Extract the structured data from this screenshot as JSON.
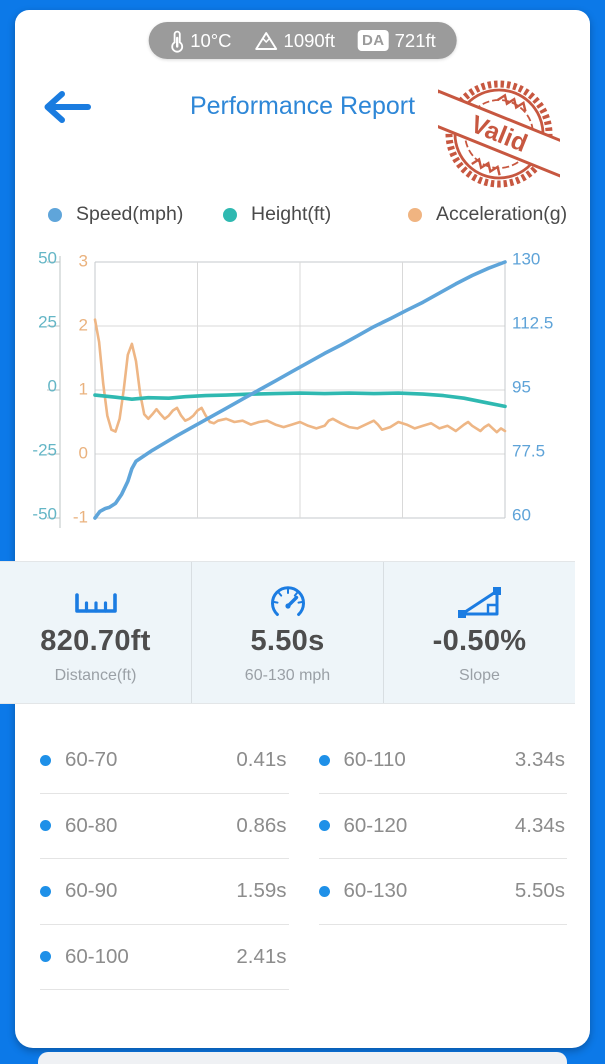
{
  "theme": {
    "frame_blue": "#0c79e8",
    "card_bg": "#ffffff",
    "accent_blue": "#1b7ce2",
    "title_blue": "#2e87d7",
    "stamp_red": "#c54f36",
    "pill_bg": "#9b9b9b",
    "stats_bg": "#eef5f9",
    "split_dot_blue": "#1e90e8",
    "value_text": "#4d4d4d",
    "muted_text": "#9aa0a6"
  },
  "env_bar": {
    "temperature": "10°C",
    "altitude": "1090ft",
    "da_label": "DA",
    "density_altitude": "721ft"
  },
  "header": {
    "title": "Performance Report",
    "stamp_text": "Valid"
  },
  "legend": [
    {
      "label": "Speed(mph)",
      "color": "#5fa5da"
    },
    {
      "label": "Height(ft)",
      "color": "#2fb9b1"
    },
    {
      "label": "Acceleration(g)",
      "color": "#f0b481"
    }
  ],
  "chart_data": {
    "type": "line",
    "x_axis": "time, normalized 0-1 over the 5.50s run (no tick labels shown)",
    "grid": {
      "rows": 4,
      "cols": 4,
      "shown": true
    },
    "legend_position": "top",
    "axes": {
      "left_outer": {
        "name": "Height(ft)",
        "color": "#64b6c6",
        "range": [
          -50,
          50
        ],
        "ticks": [
          "50",
          "25",
          "0",
          "-25",
          "-50"
        ]
      },
      "left_inner": {
        "name": "Acceleration(g)",
        "color": "#eab27e",
        "range": [
          -1,
          3
        ],
        "ticks": [
          "3",
          "2",
          "1",
          "0",
          "-1"
        ]
      },
      "right": {
        "name": "Speed(mph)",
        "color": "#5ea3d8",
        "range": [
          60,
          130
        ],
        "ticks": [
          "130",
          "112.5",
          "95",
          "77.5",
          "60"
        ]
      }
    },
    "series": [
      {
        "name": "Acceleration(g)",
        "axis": "left_inner",
        "color": "#eeb685",
        "width": 2.6,
        "points": [
          [
            0,
            2.1
          ],
          [
            0.01,
            1.75
          ],
          [
            0.02,
            1.1
          ],
          [
            0.03,
            0.6
          ],
          [
            0.04,
            0.38
          ],
          [
            0.05,
            0.35
          ],
          [
            0.06,
            0.55
          ],
          [
            0.07,
            1.0
          ],
          [
            0.08,
            1.55
          ],
          [
            0.09,
            1.72
          ],
          [
            0.1,
            1.45
          ],
          [
            0.11,
            0.95
          ],
          [
            0.12,
            0.62
          ],
          [
            0.13,
            0.55
          ],
          [
            0.14,
            0.62
          ],
          [
            0.15,
            0.7
          ],
          [
            0.16,
            0.62
          ],
          [
            0.17,
            0.55
          ],
          [
            0.18,
            0.6
          ],
          [
            0.19,
            0.68
          ],
          [
            0.2,
            0.72
          ],
          [
            0.21,
            0.6
          ],
          [
            0.22,
            0.52
          ],
          [
            0.23,
            0.55
          ],
          [
            0.24,
            0.6
          ],
          [
            0.25,
            0.68
          ],
          [
            0.26,
            0.72
          ],
          [
            0.27,
            0.6
          ],
          [
            0.28,
            0.5
          ],
          [
            0.29,
            0.48
          ],
          [
            0.3,
            0.52
          ],
          [
            0.32,
            0.55
          ],
          [
            0.34,
            0.5
          ],
          [
            0.36,
            0.52
          ],
          [
            0.38,
            0.46
          ],
          [
            0.4,
            0.5
          ],
          [
            0.42,
            0.52
          ],
          [
            0.44,
            0.46
          ],
          [
            0.46,
            0.42
          ],
          [
            0.48,
            0.46
          ],
          [
            0.5,
            0.5
          ],
          [
            0.52,
            0.44
          ],
          [
            0.54,
            0.4
          ],
          [
            0.56,
            0.44
          ],
          [
            0.57,
            0.52
          ],
          [
            0.58,
            0.55
          ],
          [
            0.6,
            0.48
          ],
          [
            0.62,
            0.42
          ],
          [
            0.64,
            0.4
          ],
          [
            0.66,
            0.46
          ],
          [
            0.68,
            0.52
          ],
          [
            0.69,
            0.46
          ],
          [
            0.7,
            0.38
          ],
          [
            0.72,
            0.42
          ],
          [
            0.74,
            0.5
          ],
          [
            0.76,
            0.46
          ],
          [
            0.78,
            0.4
          ],
          [
            0.8,
            0.44
          ],
          [
            0.82,
            0.48
          ],
          [
            0.84,
            0.4
          ],
          [
            0.86,
            0.44
          ],
          [
            0.88,
            0.36
          ],
          [
            0.9,
            0.46
          ],
          [
            0.91,
            0.5
          ],
          [
            0.92,
            0.44
          ],
          [
            0.94,
            0.36
          ],
          [
            0.95,
            0.42
          ],
          [
            0.96,
            0.46
          ],
          [
            0.97,
            0.4
          ],
          [
            0.98,
            0.34
          ],
          [
            0.99,
            0.4
          ],
          [
            1,
            0.36
          ]
        ]
      },
      {
        "name": "Height(ft)",
        "axis": "left_outer",
        "color": "#2fb9b1",
        "width": 3.6,
        "points": [
          [
            0,
            -2
          ],
          [
            0.05,
            -2.8
          ],
          [
            0.09,
            -3.6
          ],
          [
            0.13,
            -3.0
          ],
          [
            0.18,
            -3.2
          ],
          [
            0.22,
            -2.6
          ],
          [
            0.27,
            -2.2
          ],
          [
            0.32,
            -2.0
          ],
          [
            0.38,
            -1.6
          ],
          [
            0.44,
            -1.4
          ],
          [
            0.5,
            -1.2
          ],
          [
            0.56,
            -1.4
          ],
          [
            0.62,
            -1.2
          ],
          [
            0.68,
            -1.4
          ],
          [
            0.74,
            -1.2
          ],
          [
            0.8,
            -1.6
          ],
          [
            0.85,
            -2.2
          ],
          [
            0.9,
            -3.2
          ],
          [
            0.95,
            -4.8
          ],
          [
            1,
            -6.4
          ]
        ]
      },
      {
        "name": "Speed(mph)",
        "axis": "right",
        "color": "#5fa5da",
        "width": 3.6,
        "points": [
          [
            0,
            60
          ],
          [
            0.012,
            61.8
          ],
          [
            0.025,
            62.6
          ],
          [
            0.035,
            62.9
          ],
          [
            0.05,
            64
          ],
          [
            0.065,
            66.5
          ],
          [
            0.08,
            70
          ],
          [
            0.09,
            73.5
          ],
          [
            0.1,
            75.5
          ],
          [
            0.12,
            77
          ],
          [
            0.14,
            78.5
          ],
          [
            0.17,
            80.5
          ],
          [
            0.2,
            82.5
          ],
          [
            0.24,
            85
          ],
          [
            0.28,
            87.5
          ],
          [
            0.32,
            90
          ],
          [
            0.36,
            92.5
          ],
          [
            0.4,
            95
          ],
          [
            0.44,
            97.5
          ],
          [
            0.48,
            100
          ],
          [
            0.52,
            102.5
          ],
          [
            0.56,
            105
          ],
          [
            0.6,
            107.3
          ],
          [
            0.64,
            109.8
          ],
          [
            0.68,
            112.3
          ],
          [
            0.72,
            114.5
          ],
          [
            0.76,
            116.8
          ],
          [
            0.8,
            119
          ],
          [
            0.84,
            121.5
          ],
          [
            0.88,
            124
          ],
          [
            0.92,
            126.3
          ],
          [
            0.96,
            128.3
          ],
          [
            1,
            130
          ]
        ]
      }
    ]
  },
  "stats": [
    {
      "icon": "ruler-icon",
      "value": "820.70ft",
      "label": "Distance(ft)"
    },
    {
      "icon": "speedometer-icon",
      "value": "5.50s",
      "label": "60-130 mph"
    },
    {
      "icon": "slope-icon",
      "value": "-0.50%",
      "label": "Slope"
    }
  ],
  "splits": {
    "left": [
      {
        "range": "60-70",
        "time": "0.41s"
      },
      {
        "range": "60-80",
        "time": "0.86s"
      },
      {
        "range": "60-90",
        "time": "1.59s"
      },
      {
        "range": "60-100",
        "time": "2.41s"
      }
    ],
    "right": [
      {
        "range": "60-110",
        "time": "3.34s"
      },
      {
        "range": "60-120",
        "time": "4.34s"
      },
      {
        "range": "60-130",
        "time": "5.50s"
      }
    ]
  }
}
